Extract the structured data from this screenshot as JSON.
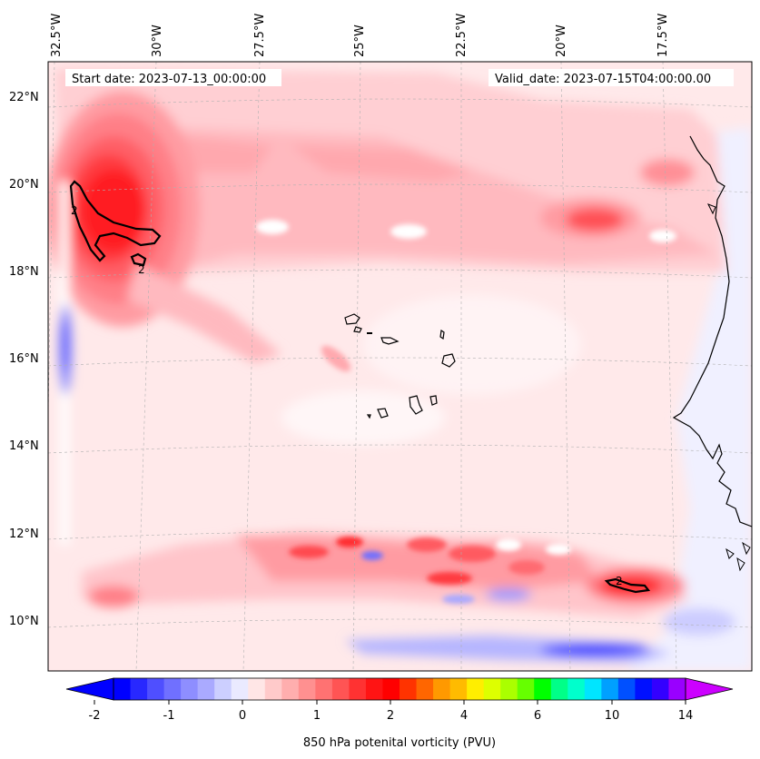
{
  "map": {
    "start_label": "Start date: 2023-07-13_00:00:00",
    "valid_label": "Valid_date: 2023-07-15T04:00:00.00",
    "lon_ticks": [
      "32.5°W",
      "30°W",
      "27.5°W",
      "25°W",
      "22.5°W",
      "20°W",
      "17.5°W"
    ],
    "lat_ticks": [
      "22°N",
      "20°N",
      "18°N",
      "16°N",
      "14°N",
      "12°N",
      "10°N"
    ],
    "contour_value": "2",
    "extent": {
      "lon_min": "33°W",
      "lon_max": "15.5°W",
      "lat_min": "8.8°N",
      "lat_max": "22.8°N"
    }
  },
  "colorbar": {
    "title": "850 hPa potenital vorticity (PVU)",
    "tick_labels": [
      "-2",
      "-1",
      "0",
      "1",
      "2",
      "4",
      "6",
      "10",
      "14"
    ],
    "colors": [
      "#0000ff",
      "#2828ff",
      "#4f4fff",
      "#7070ff",
      "#8e8eff",
      "#aaaaff",
      "#cccfff",
      "#eaeaff",
      "#ffe6e6",
      "#ffcaca",
      "#ffaeae",
      "#ff9090",
      "#ff7272",
      "#ff5454",
      "#ff3232",
      "#ff1414",
      "#ff0000",
      "#ff3300",
      "#ff6600",
      "#ff9900",
      "#ffbb00",
      "#ffee00",
      "#ddff00",
      "#aaff00",
      "#66ff00",
      "#00ff00",
      "#00ff88",
      "#00ffcc",
      "#00e5ff",
      "#00a0ff",
      "#0050ff",
      "#0010ff",
      "#3300ff",
      "#9900ff"
    ],
    "extend_min_color": "#0000ff",
    "extend_max_color": "#cc00ff"
  },
  "chart_data": {
    "type": "heatmap",
    "title": "",
    "variable": "850 hPa potenital vorticity (PVU)",
    "units": "PVU",
    "xlabel": "",
    "ylabel": "",
    "lon_range": [
      -33,
      -15.5
    ],
    "lat_range": [
      8.8,
      22.8
    ],
    "contour_level": 2,
    "color_levels": [
      -2,
      -1,
      0,
      1,
      2,
      4,
      6,
      10,
      14
    ],
    "features": [
      {
        "name": "max-nw",
        "lon": -31.6,
        "lat": 18.9,
        "value": 2.3
      },
      {
        "name": "band-18n",
        "lon": -25,
        "lat": 18.8,
        "value": 0.6
      },
      {
        "name": "max-19n",
        "lon": -20.5,
        "lat": 19.05,
        "value": 1.5
      },
      {
        "name": "band-11n",
        "lon": -24,
        "lat": 11.2,
        "value": 1.4
      },
      {
        "name": "max-se",
        "lon": -18.5,
        "lat": 10.75,
        "value": 2.1
      },
      {
        "name": "min-west",
        "lon": -32.6,
        "lat": 16.2,
        "value": -0.6
      },
      {
        "name": "min-south",
        "lon": -20.5,
        "lat": 9.3,
        "value": -0.9
      }
    ]
  }
}
